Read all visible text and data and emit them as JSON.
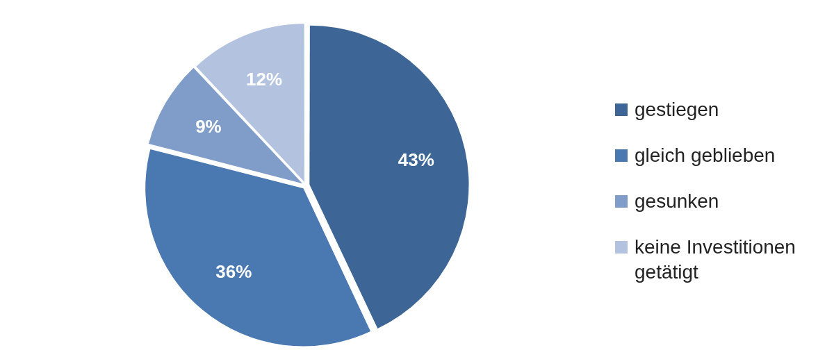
{
  "chart_data": {
    "type": "pie",
    "categories": [
      "gestiegen",
      "gleich geblieben",
      "gesunken",
      "keine Investitionen getätigt"
    ],
    "values": [
      43,
      36,
      9,
      12
    ],
    "colors": [
      "#3d6696",
      "#4a78b0",
      "#7f9dc8",
      "#b3c3df"
    ],
    "value_labels": [
      "43%",
      "36%",
      "9%",
      "12%"
    ],
    "legend": "right"
  }
}
